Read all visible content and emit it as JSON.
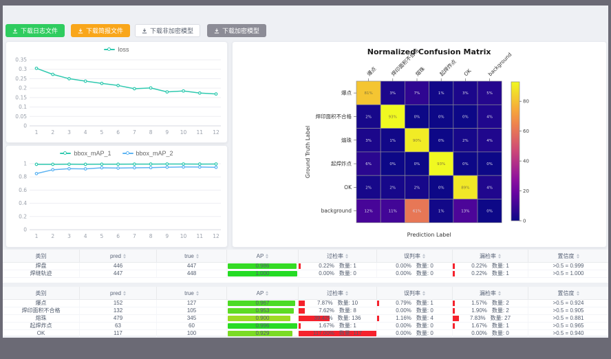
{
  "toolbar": {
    "buttons": [
      {
        "label": "下载日志文件",
        "variant": "green"
      },
      {
        "label": "下载简报文件",
        "variant": "orange"
      },
      {
        "label": "下载非加密模型",
        "variant": "white"
      },
      {
        "label": "下载加密模型",
        "variant": "gray"
      }
    ]
  },
  "theme": {
    "accent_green": "#2fcc5f",
    "accent_orange": "#f9a61a",
    "button_gray": "#8c8c96",
    "red_bar": "#f5222d",
    "series_teal": "#2fc9af",
    "series_blue": "#5cb3f2",
    "frame_dark": "#6b6a75",
    "page_bg": "#eef0f4"
  },
  "chart_data": [
    {
      "id": "loss",
      "type": "line",
      "title": "",
      "legend": [
        "loss"
      ],
      "legend_position": "top",
      "grid": true,
      "x": [
        1,
        2,
        3,
        4,
        5,
        6,
        7,
        8,
        9,
        10,
        11,
        12
      ],
      "series": [
        {
          "name": "loss",
          "color": "#2fc9af",
          "values": [
            0.305,
            0.273,
            0.25,
            0.237,
            0.225,
            0.214,
            0.197,
            0.201,
            0.18,
            0.185,
            0.174,
            0.169
          ]
        }
      ],
      "ylim": [
        0,
        0.35
      ],
      "yticks": [
        0,
        0.05,
        0.1,
        0.15,
        0.2,
        0.25,
        0.3,
        0.35
      ],
      "ytick_labels": [
        "0",
        "0.05",
        "0.1",
        "0.15",
        "0.2",
        "0.25",
        "0.3",
        "0.35"
      ]
    },
    {
      "id": "bbox_map",
      "type": "line",
      "title": "",
      "legend": [
        "bbox_mAP_1",
        "bbox_mAP_2"
      ],
      "legend_position": "top",
      "grid": true,
      "x": [
        1,
        2,
        3,
        4,
        5,
        6,
        7,
        8,
        9,
        10,
        11,
        12
      ],
      "series": [
        {
          "name": "bbox_mAP_1",
          "color": "#2fc9af",
          "values": [
            0.99,
            0.99,
            0.992,
            0.99,
            0.992,
            0.992,
            0.993,
            0.994,
            0.995,
            0.995,
            0.994,
            0.995
          ]
        },
        {
          "name": "bbox_mAP_2",
          "color": "#5cb3f2",
          "values": [
            0.85,
            0.908,
            0.924,
            0.921,
            0.938,
            0.933,
            0.938,
            0.94,
            0.947,
            0.95,
            0.949,
            0.945
          ]
        }
      ],
      "ylim": [
        0,
        1
      ],
      "yticks": [
        0,
        0.2,
        0.4,
        0.6,
        0.8,
        1
      ],
      "ytick_labels": [
        "0",
        "0.2",
        "0.4",
        "0.6",
        "0.8",
        "1"
      ]
    },
    {
      "id": "confusion_matrix",
      "type": "heatmap",
      "title": "Normalized Confusion Matrix",
      "xlabel": "Prediction Label",
      "ylabel": "Ground Truth Label",
      "classes": [
        "爆点",
        "焊印面积不合格",
        "熔珠",
        "起焊炸点",
        "OK",
        "background"
      ],
      "values_pct": [
        [
          81,
          3,
          7,
          1,
          3,
          5
        ],
        [
          2,
          93,
          0,
          0,
          0,
          4
        ],
        [
          3,
          1,
          90,
          0,
          2,
          4
        ],
        [
          6,
          0,
          0,
          93,
          0,
          0
        ],
        [
          2,
          2,
          2,
          0,
          89,
          4
        ],
        [
          12,
          11,
          61,
          1,
          13,
          0
        ]
      ],
      "vmax": 93,
      "colorbar_ticks": [
        0,
        20,
        40,
        60,
        80
      ]
    }
  ],
  "tables": [
    {
      "headers": [
        {
          "label": "类别",
          "sortable": false
        },
        {
          "label": "pred",
          "sortable": true
        },
        {
          "label": "true",
          "sortable": true
        },
        {
          "label": "AP",
          "sortable": true
        },
        {
          "label": "过检率",
          "sortable": true
        },
        {
          "label": "误判率",
          "sortable": true
        },
        {
          "label": "漏检率",
          "sortable": true
        },
        {
          "label": "置信度",
          "sortable": true
        }
      ],
      "rows": [
        {
          "class": "焊盘",
          "pred": "446",
          "true": "447",
          "ap": 0.986,
          "ap_label": "0.986",
          "rates": [
            {
              "pct": "0.22%",
              "val": 0.22,
              "count": "数量: 1"
            },
            {
              "pct": "0.00%",
              "val": 0,
              "count": "数量: 0"
            },
            {
              "pct": "0.22%",
              "val": 0.22,
              "count": "数量: 1"
            }
          ],
          "conf": ">0.5 = 0.999"
        },
        {
          "class": "焊缝轨迹",
          "pred": "447",
          "true": "448",
          "ap": 1.0,
          "ap_label": "1.000",
          "rates": [
            {
              "pct": "0.00%",
              "val": 0,
              "count": "数量: 0"
            },
            {
              "pct": "0.00%",
              "val": 0,
              "count": "数量: 0"
            },
            {
              "pct": "0.22%",
              "val": 0.22,
              "count": "数量: 1"
            }
          ],
          "conf": ">0.5 = 1.000"
        }
      ]
    },
    {
      "headers": [
        {
          "label": "类别",
          "sortable": false
        },
        {
          "label": "pred",
          "sortable": true
        },
        {
          "label": "true",
          "sortable": true
        },
        {
          "label": "AP",
          "sortable": true
        },
        {
          "label": "过检率",
          "sortable": true
        },
        {
          "label": "误判率",
          "sortable": true
        },
        {
          "label": "漏检率",
          "sortable": true
        },
        {
          "label": "置信度",
          "sortable": true
        }
      ],
      "rows": [
        {
          "class": "爆点",
          "pred": "152",
          "true": "127",
          "ap": 0.967,
          "ap_label": "0.967",
          "rates": [
            {
              "pct": "7.87%",
              "val": 7.87,
              "count": "数量: 10"
            },
            {
              "pct": "0.79%",
              "val": 0.79,
              "count": "数量: 1"
            },
            {
              "pct": "1.57%",
              "val": 1.57,
              "count": "数量: 2"
            }
          ],
          "conf": ">0.5 = 0.924"
        },
        {
          "class": "焊印面积不合格",
          "pred": "132",
          "true": "105",
          "ap": 0.953,
          "ap_label": "0.953",
          "rates": [
            {
              "pct": "7.62%",
              "val": 7.62,
              "count": "数量: 8"
            },
            {
              "pct": "0.00%",
              "val": 0,
              "count": "数量: 0"
            },
            {
              "pct": "1.90%",
              "val": 1.9,
              "count": "数量: 2"
            }
          ],
          "conf": ">0.5 = 0.905"
        },
        {
          "class": "熔珠",
          "pred": "479",
          "true": "345",
          "ap": 0.9,
          "ap_label": "0.900",
          "rates": [
            {
              "pct": "39.42%",
              "val": 39.42,
              "count": "数量: 136"
            },
            {
              "pct": "1.16%",
              "val": 1.16,
              "count": "数量: 4"
            },
            {
              "pct": "7.83%",
              "val": 7.83,
              "count": "数量: 27"
            }
          ],
          "conf": ">0.5 = 0.881"
        },
        {
          "class": "起焊炸点",
          "pred": "63",
          "true": "60",
          "ap": 0.996,
          "ap_label": "0.996",
          "rates": [
            {
              "pct": "1.67%",
              "val": 1.67,
              "count": "数量: 1"
            },
            {
              "pct": "0.00%",
              "val": 0,
              "count": "数量: 0"
            },
            {
              "pct": "1.67%",
              "val": 1.67,
              "count": "数量: 1"
            }
          ],
          "conf": ">0.5 = 0.965"
        },
        {
          "class": "OK",
          "pred": "117",
          "true": "100",
          "ap": 0.929,
          "ap_label": "0.929",
          "rates": [
            {
              "pct": "117.00%",
              "val": 117,
              "count": "数量: 117"
            },
            {
              "pct": "0.00%",
              "val": 0,
              "count": "数量: 0"
            },
            {
              "pct": "0.00%",
              "val": 0,
              "count": "数量: 0"
            }
          ],
          "conf": ">0.5 = 0.940"
        }
      ]
    }
  ]
}
